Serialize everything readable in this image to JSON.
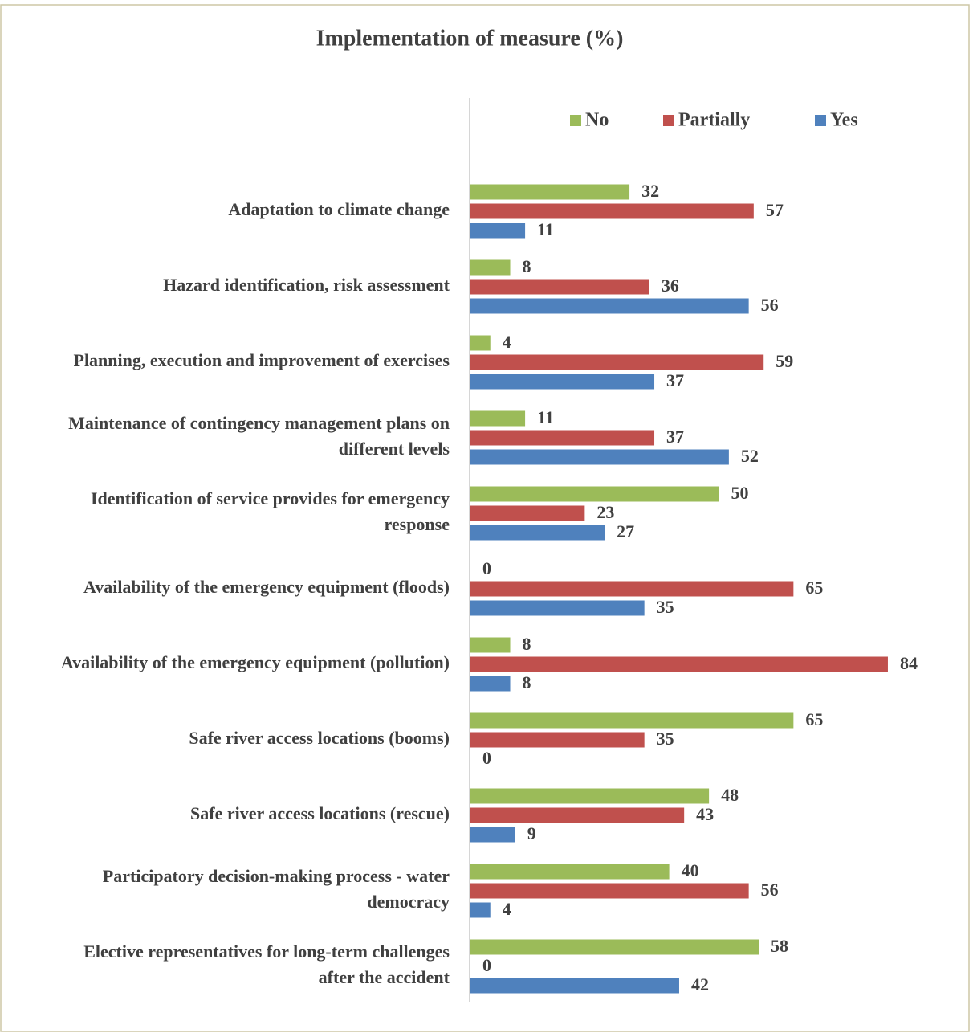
{
  "chart_data": {
    "type": "hbar",
    "title": "Implementation of measure (%)",
    "categories": [
      "Adaptation to climate change",
      "Hazard identification, risk assessment",
      "Planning, execution and improvement of exercises",
      "Maintenance of contingency management plans on different levels",
      "Identification of service provides for emergency response",
      "Availability of the emergency equipment (floods)",
      "Availability of the emergency equipment (pollution)",
      "Safe river access locations (booms)",
      "Safe river access locations (rescue)",
      "Participatory decision-making process - water democracy",
      "Elective representatives for long-term challenges after the accident"
    ],
    "series": [
      {
        "name": "No",
        "color": "#9bbb59",
        "values": [
          32,
          8,
          4,
          11,
          50,
          0,
          8,
          65,
          48,
          40,
          58
        ]
      },
      {
        "name": "Partially",
        "color": "#c0504d",
        "values": [
          57,
          36,
          59,
          37,
          23,
          65,
          84,
          35,
          43,
          56,
          0
        ]
      },
      {
        "name": "Yes",
        "color": "#4f81bd",
        "values": [
          11,
          56,
          37,
          52,
          27,
          35,
          8,
          0,
          9,
          4,
          42
        ]
      }
    ],
    "xlim": [
      0,
      100
    ],
    "legend": "top"
  }
}
